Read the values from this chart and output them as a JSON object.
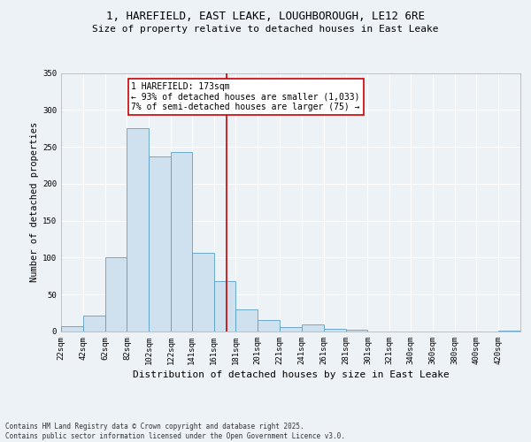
{
  "title_line1": "1, HAREFIELD, EAST LEAKE, LOUGHBOROUGH, LE12 6RE",
  "title_line2": "Size of property relative to detached houses in East Leake",
  "xlabel": "Distribution of detached houses by size in East Leake",
  "ylabel": "Number of detached properties",
  "bar_color": "#cfe0ef",
  "bar_edge_color": "#5a9fc5",
  "background_color": "#edf2f7",
  "grid_color": "#ffffff",
  "annotation_line_color": "#cc0000",
  "annotation_text": "1 HAREFIELD: 173sqm\n← 93% of detached houses are smaller (1,033)\n7% of semi-detached houses are larger (75) →",
  "property_size_sqm": 173,
  "categories": [
    "22sqm",
    "42sqm",
    "62sqm",
    "82sqm",
    "102sqm",
    "122sqm",
    "141sqm",
    "161sqm",
    "181sqm",
    "201sqm",
    "221sqm",
    "241sqm",
    "261sqm",
    "281sqm",
    "301sqm",
    "321sqm",
    "340sqm",
    "360sqm",
    "380sqm",
    "400sqm",
    "420sqm"
  ],
  "values": [
    7,
    21,
    100,
    275,
    237,
    243,
    106,
    68,
    30,
    16,
    6,
    10,
    3,
    2,
    0,
    0,
    0,
    0,
    0,
    0,
    1
  ],
  "bin_edges": [
    22,
    42,
    62,
    82,
    102,
    122,
    141,
    161,
    181,
    201,
    221,
    241,
    261,
    281,
    301,
    321,
    340,
    360,
    380,
    400,
    420,
    440
  ],
  "ylim": [
    0,
    350
  ],
  "yticks": [
    0,
    50,
    100,
    150,
    200,
    250,
    300,
    350
  ],
  "footer_text": "Contains HM Land Registry data © Crown copyright and database right 2025.\nContains public sector information licensed under the Open Government Licence v3.0.",
  "annotation_box_color": "#ffffff",
  "annotation_box_edge": "#cc0000",
  "title1_fontsize": 9,
  "title2_fontsize": 8,
  "ylabel_fontsize": 7.5,
  "xlabel_fontsize": 8,
  "tick_fontsize": 6.5,
  "annot_fontsize": 7,
  "footer_fontsize": 5.5
}
